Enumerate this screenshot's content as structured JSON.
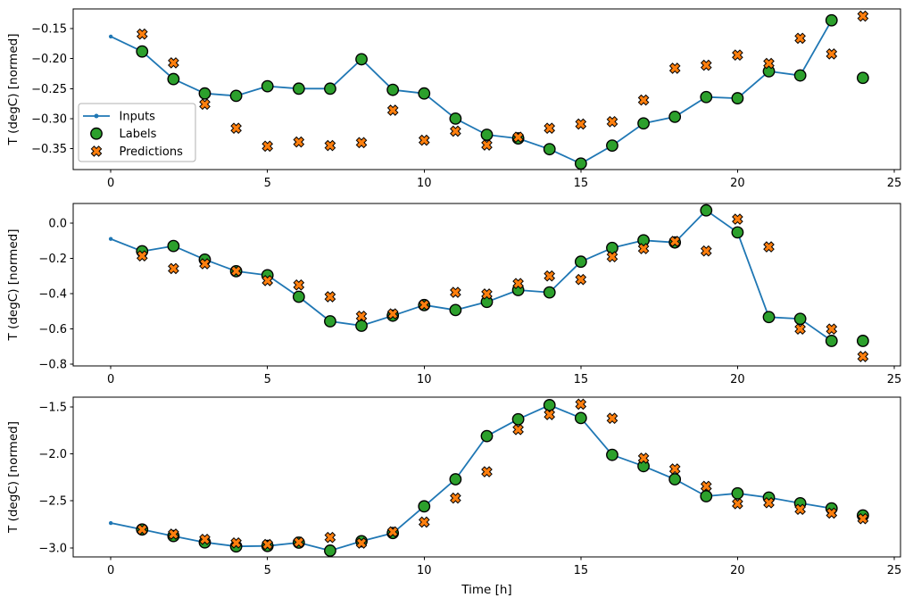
{
  "figure": {
    "background": "#ffffff",
    "ylabel": "T (degC) [normed]",
    "xlabel": "Time [h]",
    "colors": {
      "inputs": "#1f77b4",
      "labels": "#2ca02c",
      "predictions": "#ff7f0e",
      "marker_edge": "#000000",
      "axes": "#000000",
      "legend_border": "#b0b0b0"
    },
    "legend": {
      "items": [
        {
          "label": "Inputs",
          "sample": "line-with-dot"
        },
        {
          "label": "Labels",
          "sample": "circle"
        },
        {
          "label": "Predictions",
          "sample": "x-marker"
        }
      ],
      "location": "left side of top subplot"
    }
  },
  "chart_data": [
    {
      "type": "line",
      "title": "",
      "xlabel": "",
      "ylabel": "T (degC) [normed]",
      "xlim": [
        -1.2,
        25.2
      ],
      "ylim": [
        -0.385,
        -0.117
      ],
      "xticks": [
        0,
        5,
        10,
        15,
        20,
        25
      ],
      "xticklabels": [
        "0",
        "5",
        "10",
        "15",
        "20",
        "25"
      ],
      "yticks": [
        -0.15,
        -0.2,
        -0.25,
        -0.3,
        -0.35
      ],
      "yticklabels": [
        "−0.15",
        "−0.20",
        "−0.25",
        "−0.30",
        "−0.35"
      ],
      "grid": false,
      "show_legend": true,
      "series": [
        {
          "name": "Inputs",
          "style": "line",
          "x": [
            0,
            1,
            2,
            3,
            4,
            5,
            6,
            7,
            8,
            9,
            10,
            11,
            12,
            13,
            14,
            15,
            16,
            17,
            18,
            19,
            20,
            21,
            22,
            23
          ],
          "y": [
            -0.163,
            -0.188,
            -0.234,
            -0.258,
            -0.262,
            -0.246,
            -0.25,
            -0.25,
            -0.201,
            -0.252,
            -0.258,
            -0.3,
            -0.327,
            -0.333,
            -0.351,
            -0.375,
            -0.345,
            -0.308,
            -0.297,
            -0.264,
            -0.266,
            -0.221,
            -0.228,
            -0.136
          ]
        },
        {
          "name": "Labels",
          "style": "scatter-circle",
          "x": [
            1,
            2,
            3,
            4,
            5,
            6,
            7,
            8,
            9,
            10,
            11,
            12,
            13,
            14,
            15,
            16,
            17,
            18,
            19,
            20,
            21,
            22,
            23,
            24
          ],
          "y": [
            -0.188,
            -0.234,
            -0.258,
            -0.262,
            -0.246,
            -0.25,
            -0.25,
            -0.201,
            -0.252,
            -0.258,
            -0.3,
            -0.327,
            -0.333,
            -0.351,
            -0.375,
            -0.345,
            -0.308,
            -0.297,
            -0.264,
            -0.266,
            -0.221,
            -0.228,
            -0.136,
            -0.232
          ]
        },
        {
          "name": "Predictions",
          "style": "scatter-x",
          "x": [
            1,
            2,
            3,
            4,
            5,
            6,
            7,
            8,
            9,
            10,
            11,
            12,
            13,
            14,
            15,
            16,
            17,
            18,
            19,
            20,
            21,
            22,
            23,
            24
          ],
          "y": [
            -0.159,
            -0.207,
            -0.276,
            -0.316,
            -0.346,
            -0.339,
            -0.345,
            -0.34,
            -0.286,
            -0.336,
            -0.321,
            -0.344,
            -0.331,
            -0.316,
            -0.309,
            -0.305,
            -0.269,
            -0.216,
            -0.211,
            -0.194,
            -0.208,
            -0.166,
            -0.192,
            -0.129
          ]
        }
      ]
    },
    {
      "type": "line",
      "title": "",
      "xlabel": "",
      "ylabel": "T (degC) [normed]",
      "xlim": [
        -1.2,
        25.2
      ],
      "ylim": [
        -0.81,
        0.111
      ],
      "xticks": [
        0,
        5,
        10,
        15,
        20,
        25
      ],
      "xticklabels": [
        "0",
        "5",
        "10",
        "15",
        "20",
        "25"
      ],
      "yticks": [
        0.0,
        -0.2,
        -0.4,
        -0.6,
        -0.8
      ],
      "yticklabels": [
        "0.0",
        "−0.2",
        "−0.4",
        "−0.6",
        "−0.8"
      ],
      "grid": false,
      "show_legend": false,
      "series": [
        {
          "name": "Inputs",
          "style": "line",
          "x": [
            0,
            1,
            2,
            3,
            4,
            5,
            6,
            7,
            8,
            9,
            10,
            11,
            12,
            13,
            14,
            15,
            16,
            17,
            18,
            19,
            20,
            21,
            22,
            23
          ],
          "y": [
            -0.09,
            -0.16,
            -0.13,
            -0.207,
            -0.273,
            -0.296,
            -0.418,
            -0.557,
            -0.582,
            -0.525,
            -0.465,
            -0.493,
            -0.447,
            -0.38,
            -0.393,
            -0.219,
            -0.141,
            -0.098,
            -0.11,
            0.072,
            -0.053,
            -0.533,
            -0.543,
            -0.668
          ]
        },
        {
          "name": "Labels",
          "style": "scatter-circle",
          "x": [
            1,
            2,
            3,
            4,
            5,
            6,
            7,
            8,
            9,
            10,
            11,
            12,
            13,
            14,
            15,
            16,
            17,
            18,
            19,
            20,
            21,
            22,
            23,
            24
          ],
          "y": [
            -0.16,
            -0.13,
            -0.207,
            -0.273,
            -0.296,
            -0.418,
            -0.557,
            -0.582,
            -0.525,
            -0.465,
            -0.493,
            -0.447,
            -0.38,
            -0.393,
            -0.219,
            -0.141,
            -0.098,
            -0.11,
            0.072,
            -0.053,
            -0.533,
            -0.543,
            -0.668,
            -0.668
          ]
        },
        {
          "name": "Predictions",
          "style": "scatter-x",
          "x": [
            1,
            2,
            3,
            4,
            5,
            6,
            7,
            8,
            9,
            10,
            11,
            12,
            13,
            14,
            15,
            16,
            17,
            18,
            19,
            20,
            21,
            22,
            23,
            24
          ],
          "y": [
            -0.186,
            -0.258,
            -0.231,
            -0.272,
            -0.326,
            -0.351,
            -0.418,
            -0.528,
            -0.515,
            -0.464,
            -0.393,
            -0.402,
            -0.343,
            -0.3,
            -0.32,
            -0.191,
            -0.145,
            -0.104,
            -0.158,
            0.022,
            -0.135,
            -0.601,
            -0.601,
            -0.757
          ]
        }
      ]
    },
    {
      "type": "line",
      "title": "",
      "xlabel": "Time [h]",
      "ylabel": "T (degC) [normed]",
      "xlim": [
        -1.2,
        25.2
      ],
      "ylim": [
        -3.097,
        -1.395
      ],
      "xticks": [
        0,
        5,
        10,
        15,
        20,
        25
      ],
      "xticklabels": [
        "0",
        "5",
        "10",
        "15",
        "20",
        "25"
      ],
      "yticks": [
        -1.5,
        -2.0,
        -2.5,
        -3.0
      ],
      "yticklabels": [
        "−1.5",
        "−2.0",
        "−2.5",
        "−3.0"
      ],
      "grid": false,
      "show_legend": false,
      "series": [
        {
          "name": "Inputs",
          "style": "line",
          "x": [
            0,
            1,
            2,
            3,
            4,
            5,
            6,
            7,
            8,
            9,
            10,
            11,
            12,
            13,
            14,
            15,
            16,
            17,
            18,
            19,
            20,
            21,
            22,
            23
          ],
          "y": [
            -2.736,
            -2.805,
            -2.875,
            -2.942,
            -2.985,
            -2.98,
            -2.945,
            -3.03,
            -2.93,
            -2.843,
            -2.558,
            -2.27,
            -1.81,
            -1.63,
            -1.48,
            -1.617,
            -2.01,
            -2.13,
            -2.27,
            -2.45,
            -2.42,
            -2.465,
            -2.525,
            -2.58
          ]
        },
        {
          "name": "Labels",
          "style": "scatter-circle",
          "x": [
            1,
            2,
            3,
            4,
            5,
            6,
            7,
            8,
            9,
            10,
            11,
            12,
            13,
            14,
            15,
            16,
            17,
            18,
            19,
            20,
            21,
            22,
            23,
            24
          ],
          "y": [
            -2.805,
            -2.875,
            -2.942,
            -2.985,
            -2.98,
            -2.945,
            -3.03,
            -2.93,
            -2.843,
            -2.558,
            -2.27,
            -1.81,
            -1.63,
            -1.48,
            -1.617,
            -2.01,
            -2.13,
            -2.27,
            -2.45,
            -2.42,
            -2.465,
            -2.525,
            -2.58,
            -2.655
          ]
        },
        {
          "name": "Predictions",
          "style": "scatter-x",
          "x": [
            1,
            2,
            3,
            4,
            5,
            6,
            7,
            8,
            9,
            10,
            11,
            12,
            13,
            14,
            15,
            16,
            17,
            18,
            19,
            20,
            21,
            22,
            23,
            24
          ],
          "y": [
            -2.805,
            -2.855,
            -2.91,
            -2.948,
            -2.965,
            -2.94,
            -2.89,
            -2.95,
            -2.83,
            -2.726,
            -2.47,
            -2.19,
            -1.74,
            -1.58,
            -1.47,
            -1.62,
            -2.045,
            -2.16,
            -2.345,
            -2.53,
            -2.52,
            -2.59,
            -2.63,
            -2.69
          ]
        }
      ]
    }
  ]
}
